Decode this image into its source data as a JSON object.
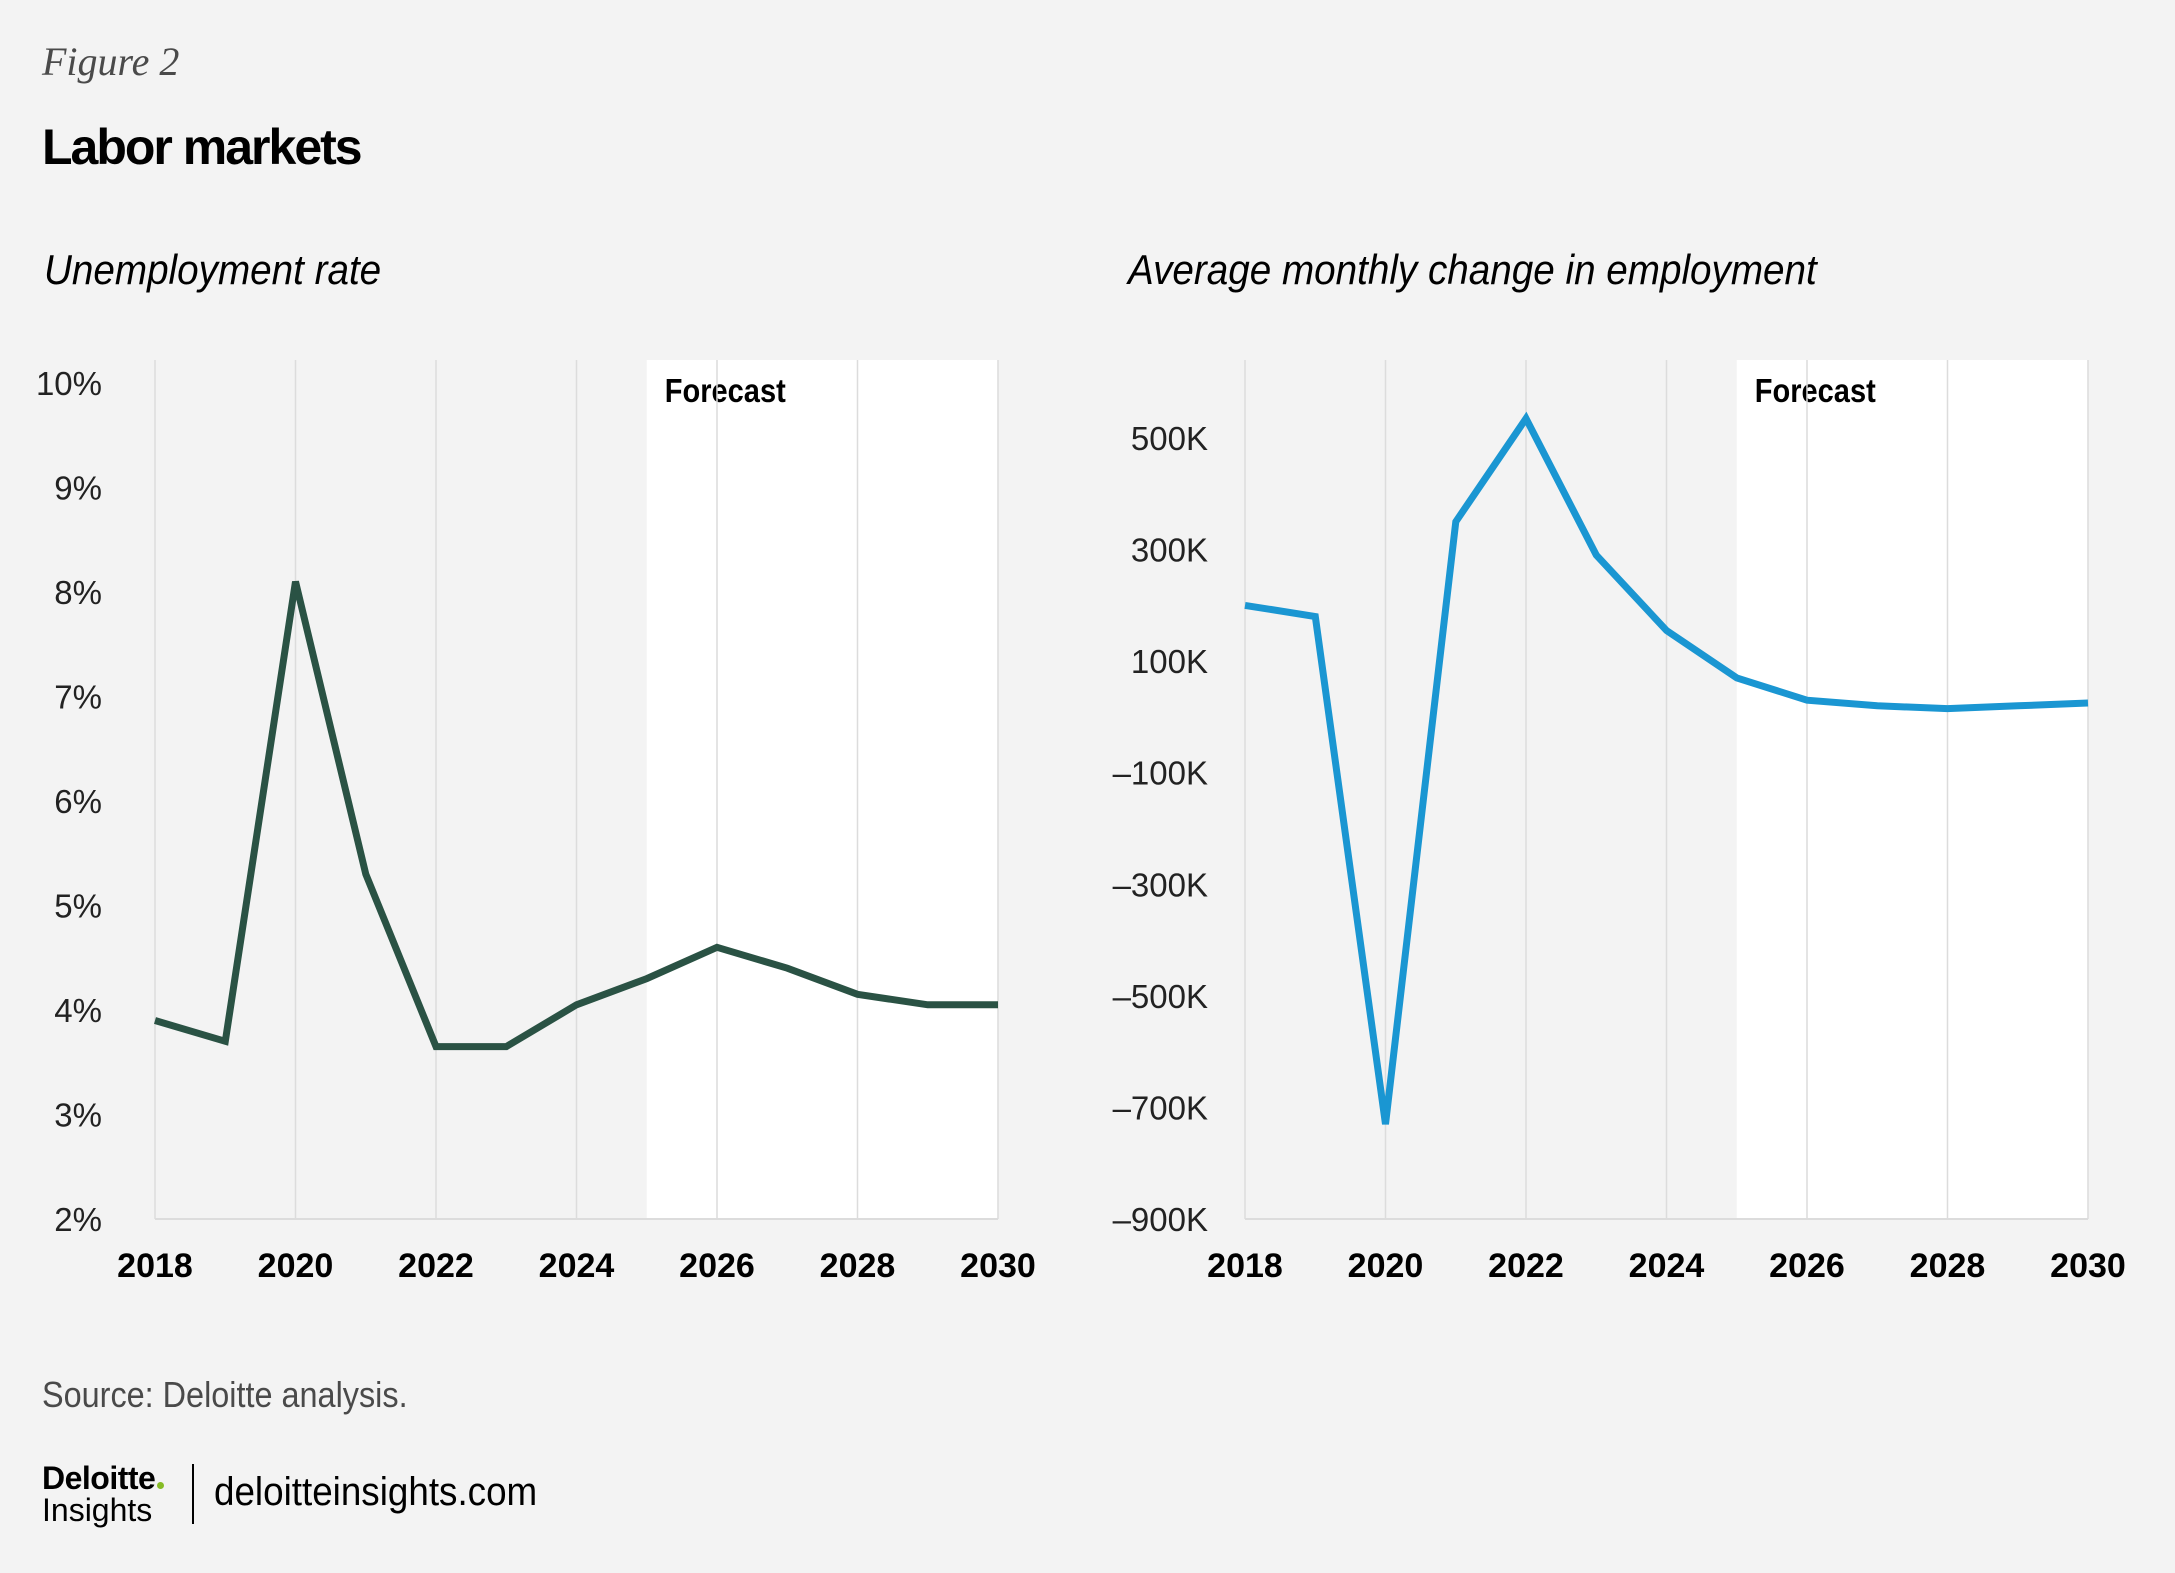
{
  "figure_label": "Figure 2",
  "title": "Labor markets",
  "forecast_label": "Forecast",
  "source": "Source: Deloitte analysis.",
  "footer": {
    "logo_main": "Deloitte",
    "logo_sub": "Insights",
    "site": "deloitteinsights.com"
  },
  "colors": {
    "background": "#f3f3f3",
    "forecast_band": "#ffffff",
    "gridline": "#dcdcdc",
    "unemployment_line": "#2a5244",
    "employment_line": "#1a96d2",
    "logo_dot": "#86bc25"
  },
  "chart_data": [
    {
      "type": "line",
      "title": "Unemployment rate",
      "xlabel": "",
      "ylabel": "",
      "x": [
        2018,
        2019,
        2020,
        2021,
        2022,
        2023,
        2024,
        2025,
        2026,
        2027,
        2028,
        2029,
        2030
      ],
      "series": [
        {
          "name": "Unemployment rate (%)",
          "values": [
            3.9,
            3.7,
            8.1,
            5.3,
            3.65,
            3.65,
            4.05,
            4.3,
            4.6,
            4.4,
            4.15,
            4.05,
            4.05
          ]
        }
      ],
      "xlim": [
        2018,
        2030
      ],
      "ylim": [
        2,
        10
      ],
      "x_ticks": [
        2018,
        2020,
        2022,
        2024,
        2026,
        2028,
        2030
      ],
      "x_tick_labels": [
        "2018",
        "2020",
        "2022",
        "2024",
        "2026",
        "2028",
        "2030"
      ],
      "y_ticks": [
        2,
        3,
        4,
        5,
        6,
        7,
        8,
        9,
        10
      ],
      "y_tick_labels": [
        "2%",
        "3%",
        "4%",
        "5%",
        "6%",
        "7%",
        "8%",
        "9%",
        "10%"
      ],
      "forecast_start": 2025,
      "annotation": "Forecast",
      "grid": "vertical"
    },
    {
      "type": "line",
      "title": "Average monthly change in employment",
      "xlabel": "",
      "ylabel": "",
      "x": [
        2018,
        2019,
        2020,
        2021,
        2022,
        2023,
        2024,
        2025,
        2026,
        2027,
        2028,
        2029,
        2030
      ],
      "series": [
        {
          "name": "Average monthly change in employment",
          "values": [
            200000,
            180000,
            -730000,
            350000,
            535000,
            290000,
            155000,
            70000,
            30000,
            20000,
            15000,
            20000,
            25000
          ]
        }
      ],
      "xlim": [
        2018,
        2030
      ],
      "ylim": [
        -900000,
        600000
      ],
      "x_ticks": [
        2018,
        2020,
        2022,
        2024,
        2026,
        2028,
        2030
      ],
      "x_tick_labels": [
        "2018",
        "2020",
        "2022",
        "2024",
        "2026",
        "2028",
        "2030"
      ],
      "y_ticks": [
        -900000,
        -700000,
        -500000,
        -300000,
        -100000,
        100000,
        300000,
        500000
      ],
      "y_tick_labels": [
        "–900K",
        "–700K",
        "–500K",
        "–300K",
        "–100K",
        "100K",
        "300K",
        "500K"
      ],
      "forecast_start": 2025,
      "annotation": "Forecast",
      "grid": "vertical"
    }
  ]
}
